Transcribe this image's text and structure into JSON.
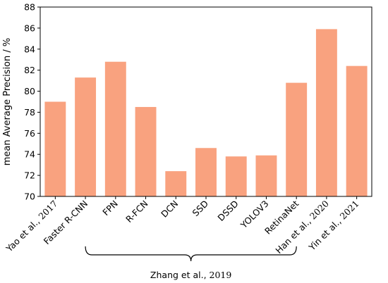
{
  "chart_data": {
    "type": "bar",
    "title": "",
    "xlabel": "",
    "ylabel": "mean Average Precision / %",
    "ylim": [
      70,
      88
    ],
    "yticks": [
      70,
      72,
      74,
      76,
      78,
      80,
      82,
      84,
      86,
      88
    ],
    "grid": false,
    "legend": "none",
    "bar_color": "#f9a27f",
    "categories": [
      "Yao et al., 2017",
      "Faster R-CNN",
      "FPN",
      "R-FCN",
      "DCN",
      "SSD",
      "DSSD",
      "YOLOV3",
      "RetinaNet",
      "Han et al., 2020",
      "Yin et al., 2021"
    ],
    "values": [
      79.0,
      81.3,
      82.8,
      78.5,
      72.4,
      74.6,
      73.8,
      73.9,
      80.8,
      85.9,
      82.4
    ],
    "group_annotation": {
      "label": "Zhang et al., 2019",
      "from_category": "Faster R-CNN",
      "to_category": "RetinaNet"
    }
  }
}
